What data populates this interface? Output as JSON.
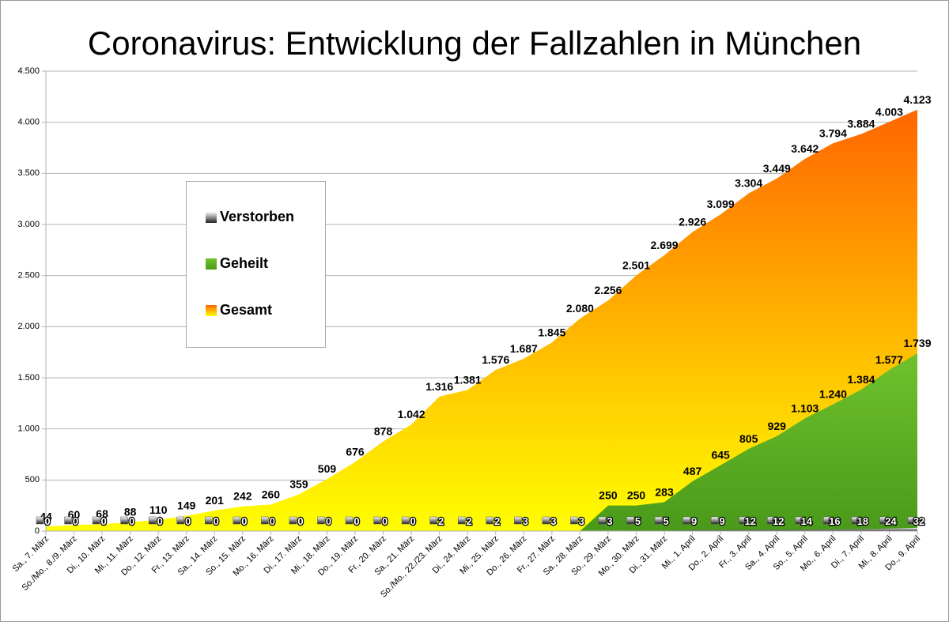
{
  "chart_data": {
    "type": "area",
    "title": "Coronavirus: Entwicklung der Fallzahlen in München",
    "categories": [
      "Sa., 7. März",
      "So./Mo., 8./9. März",
      "Di., 10. März",
      "Mi., 11. März",
      "Do., 12. März",
      "Fr., 13. März",
      "Sa., 14. März",
      "So., 15. März",
      "Mo., 16. März",
      "Di., 17. März",
      "Mi., 18. März",
      "Do., 19. März",
      "Fr., 20. März",
      "Sa., 21. März",
      "So./Mo., 22./23. März",
      "Di., 24. März",
      "Mi., 25. März",
      "Do., 26. März",
      "Fr., 27. März",
      "Sa., 28. März",
      "So., 29. März",
      "Mo., 30. März",
      "Di., 31. März",
      "Mi., 1. April",
      "Do., 2. April",
      "Fr., 3. April",
      "Sa., 4. April",
      "So., 5. April",
      "Mo., 6. April",
      "Di., 7. April",
      "Mi., 8. April",
      "Do., 9. April"
    ],
    "series": [
      {
        "name": "Gesamt",
        "color": "#ff6600",
        "values": [
          44,
          60,
          68,
          88,
          110,
          149,
          201,
          242,
          260,
          359,
          509,
          676,
          878,
          1042,
          1316,
          1381,
          1576,
          1687,
          1845,
          2080,
          2256,
          2501,
          2699,
          2926,
          3099,
          3304,
          3449,
          3642,
          3794,
          3884,
          4003,
          4123
        ],
        "value_labels": [
          "44",
          "60",
          "68",
          "88",
          "110",
          "149",
          "201",
          "242",
          "260",
          "359",
          "509",
          "676",
          "878",
          "1.042",
          "1.316",
          "1.381",
          "1.576",
          "1.687",
          "1.845",
          "2.080",
          "2.256",
          "2.501",
          "2.699",
          "2.926",
          "3.099",
          "3.304",
          "3.449",
          "3.642",
          "3.794",
          "3.884",
          "4.003",
          "4.123"
        ]
      },
      {
        "name": "Geheilt",
        "color": "#4a9a1a",
        "values": [
          null,
          null,
          null,
          null,
          null,
          null,
          null,
          null,
          null,
          null,
          null,
          null,
          null,
          null,
          null,
          null,
          null,
          null,
          null,
          0,
          250,
          250,
          283,
          487,
          645,
          805,
          929,
          1103,
          1240,
          1384,
          1577,
          1739
        ],
        "value_labels": [
          null,
          null,
          null,
          null,
          null,
          null,
          null,
          null,
          null,
          null,
          null,
          null,
          null,
          null,
          null,
          null,
          null,
          null,
          null,
          null,
          "250",
          "250",
          "283",
          "487",
          "645",
          "805",
          "929",
          "1.103",
          "1.240",
          "1.384",
          "1.577",
          "1.739"
        ]
      },
      {
        "name": "Verstorben",
        "color": "#222222",
        "values": [
          0,
          0,
          0,
          0,
          0,
          0,
          0,
          0,
          0,
          0,
          0,
          0,
          0,
          0,
          2,
          2,
          2,
          3,
          3,
          3,
          3,
          5,
          5,
          9,
          9,
          12,
          12,
          14,
          16,
          18,
          24,
          32
        ]
      }
    ],
    "ylim": [
      0,
      4500
    ],
    "yticks": [
      0,
      500,
      {
        "value": 1000,
        "label": "1.000"
      },
      {
        "value": 1500,
        "label": "1.500"
      },
      {
        "value": 2000,
        "label": "2.000"
      },
      {
        "value": 2500,
        "label": "2.500"
      },
      {
        "value": 3000,
        "label": "3.000"
      },
      {
        "value": 3500,
        "label": "3.500"
      },
      {
        "value": 4000,
        "label": "4.000"
      },
      {
        "value": 4500,
        "label": "4.500"
      }
    ],
    "grid": true
  }
}
